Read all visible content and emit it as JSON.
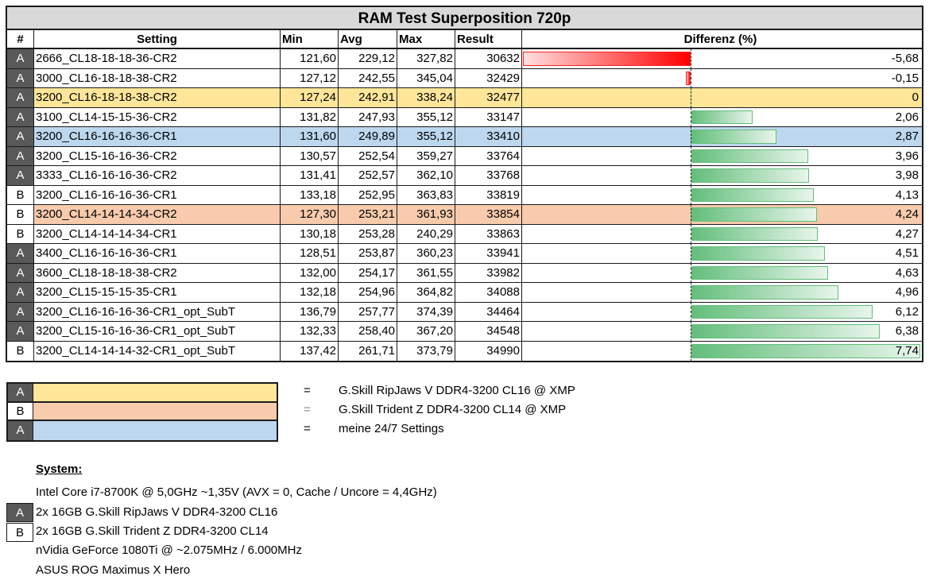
{
  "table": {
    "title": "RAM Test Superposition 720p",
    "headers": {
      "id": "#",
      "setting": "Setting",
      "min": "Min",
      "avg": "Avg",
      "max": "Max",
      "result": "Result",
      "diff": "Differenz (%)"
    },
    "rows": [
      {
        "id": "A",
        "setting": "2666_CL18-18-18-36-CR2",
        "min": "121,60",
        "avg": "229,12",
        "max": "327,82",
        "result": "30632",
        "diff": "-5,68",
        "diff_value": -5.68,
        "highlight": ""
      },
      {
        "id": "A",
        "setting": "3000_CL16-18-18-38-CR2",
        "min": "127,12",
        "avg": "242,55",
        "max": "345,04",
        "result": "32429",
        "diff": "-0,15",
        "diff_value": -0.15,
        "highlight": ""
      },
      {
        "id": "A",
        "setting": "3200_CL16-18-18-38-CR2",
        "min": "127,24",
        "avg": "242,91",
        "max": "338,24",
        "result": "32477",
        "diff": "0",
        "diff_value": 0,
        "highlight": "yellow"
      },
      {
        "id": "A",
        "setting": "3100_CL14-15-15-36-CR2",
        "min": "131,82",
        "avg": "247,93",
        "max": "355,12",
        "result": "33147",
        "diff": "2,06",
        "diff_value": 2.06,
        "highlight": ""
      },
      {
        "id": "A",
        "setting": "3200_CL16-16-16-36-CR1",
        "min": "131,60",
        "avg": "249,89",
        "max": "355,12",
        "result": "33410",
        "diff": "2,87",
        "diff_value": 2.87,
        "highlight": "blue"
      },
      {
        "id": "A",
        "setting": "3200_CL15-16-16-36-CR2",
        "min": "130,57",
        "avg": "252,54",
        "max": "359,27",
        "result": "33764",
        "diff": "3,96",
        "diff_value": 3.96,
        "highlight": ""
      },
      {
        "id": "A",
        "setting": "3333_CL16-16-16-36-CR2",
        "min": "131,41",
        "avg": "252,57",
        "max": "362,10",
        "result": "33768",
        "diff": "3,98",
        "diff_value": 3.98,
        "highlight": ""
      },
      {
        "id": "B",
        "setting": "3200_CL16-16-16-36-CR1",
        "min": "133,18",
        "avg": "252,95",
        "max": "363,83",
        "result": "33819",
        "diff": "4,13",
        "diff_value": 4.13,
        "highlight": ""
      },
      {
        "id": "B",
        "setting": "3200_CL14-14-14-34-CR2",
        "min": "127,30",
        "avg": "253,21",
        "max": "361,93",
        "result": "33854",
        "diff": "4,24",
        "diff_value": 4.24,
        "highlight": "peach"
      },
      {
        "id": "B",
        "setting": "3200_CL14-14-14-34-CR1",
        "min": "130,18",
        "avg": "253,28",
        "max": "240,29",
        "result": "33863",
        "diff": "4,27",
        "diff_value": 4.27,
        "highlight": ""
      },
      {
        "id": "A",
        "setting": "3400_CL16-16-16-36-CR1",
        "min": "128,51",
        "avg": "253,87",
        "max": "360,23",
        "result": "33941",
        "diff": "4,51",
        "diff_value": 4.51,
        "highlight": ""
      },
      {
        "id": "A",
        "setting": "3600_CL18-18-18-38-CR2",
        "min": "132,00",
        "avg": "254,17",
        "max": "361,55",
        "result": "33982",
        "diff": "4,63",
        "diff_value": 4.63,
        "highlight": ""
      },
      {
        "id": "A",
        "setting": "3200_CL15-15-15-35-CR1",
        "min": "132,18",
        "avg": "254,96",
        "max": "364,82",
        "result": "34088",
        "diff": "4,96",
        "diff_value": 4.96,
        "highlight": ""
      },
      {
        "id": "A",
        "setting": "3200_CL16-16-16-36-CR1_opt_SubT",
        "min": "136,79",
        "avg": "257,77",
        "max": "374,39",
        "result": "34464",
        "diff": "6,12",
        "diff_value": 6.12,
        "highlight": ""
      },
      {
        "id": "A",
        "setting": "3200_CL15-16-16-36-CR1_opt_SubT",
        "min": "132,33",
        "avg": "258,40",
        "max": "367,20",
        "result": "34548",
        "diff": "6,38",
        "diff_value": 6.38,
        "highlight": ""
      },
      {
        "id": "B",
        "setting": "3200_CL14-14-14-32-CR1_opt_SubT",
        "min": "137,42",
        "avg": "261,71",
        "max": "373,79",
        "result": "34990",
        "diff": "7,74",
        "diff_value": 7.74,
        "highlight": ""
      }
    ]
  },
  "legend": [
    {
      "id": "A",
      "color": "#ffe699",
      "eq": "=",
      "text": "G.Skill RipJaws V DDR4-3200 CL16 @ XMP"
    },
    {
      "id": "B",
      "color": "#f8cbad",
      "eq": "=",
      "text": "G.Skill  Trident Z DDR4-3200 CL14 @ XMP"
    },
    {
      "id": "A",
      "color": "#bdd7ee",
      "eq": "=",
      "text": "meine 24/7 Settings"
    }
  ],
  "system": {
    "title": "System:",
    "cpu": "Intel Core i7-8700K @ 5,0GHz ~1,35V (AVX = 0, Cache / Uncore = 4,4GHz)",
    "ram_a": {
      "id": "A",
      "text": "2x 16GB G.Skill RipJaws V DDR4-3200 CL16"
    },
    "ram_b": {
      "id": "B",
      "text": "2x 16GB G.Skill  Trident Z DDR4-3200 CL14"
    },
    "gpu": "nVidia GeForce 1080Ti @ ~2.075MHz / 6.000MHz",
    "board": "ASUS ROG Maximus X Hero"
  },
  "colors": {
    "id_a_bg": "#595959",
    "yellow": "#ffe699",
    "peach": "#f8cbad",
    "blue": "#bdd7ee",
    "neg_bar": "#ff0000",
    "pos_bar": "#63be7b"
  },
  "chart_data": {
    "type": "bar",
    "title": "Differenz (%)",
    "categories": [
      "2666_CL18-18-18-36-CR2",
      "3000_CL16-18-18-38-CR2",
      "3200_CL16-18-18-38-CR2",
      "3100_CL14-15-15-36-CR2",
      "3200_CL16-16-16-36-CR1",
      "3200_CL15-16-16-36-CR2",
      "3333_CL16-16-16-36-CR2",
      "3200_CL16-16-16-36-CR1",
      "3200_CL14-14-14-34-CR2",
      "3200_CL14-14-14-34-CR1",
      "3400_CL16-16-16-36-CR1",
      "3600_CL18-18-18-38-CR2",
      "3200_CL15-15-15-35-CR1",
      "3200_CL16-16-16-36-CR1_opt_SubT",
      "3200_CL15-16-16-36-CR1_opt_SubT",
      "3200_CL14-14-14-32-CR1_opt_SubT"
    ],
    "values": [
      -5.68,
      -0.15,
      0,
      2.06,
      2.87,
      3.96,
      3.98,
      4.13,
      4.24,
      4.27,
      4.51,
      4.63,
      4.96,
      6.12,
      6.38,
      7.74
    ],
    "orientation": "horizontal (in-cell data bars)",
    "xlabel": "",
    "ylabel": ""
  }
}
